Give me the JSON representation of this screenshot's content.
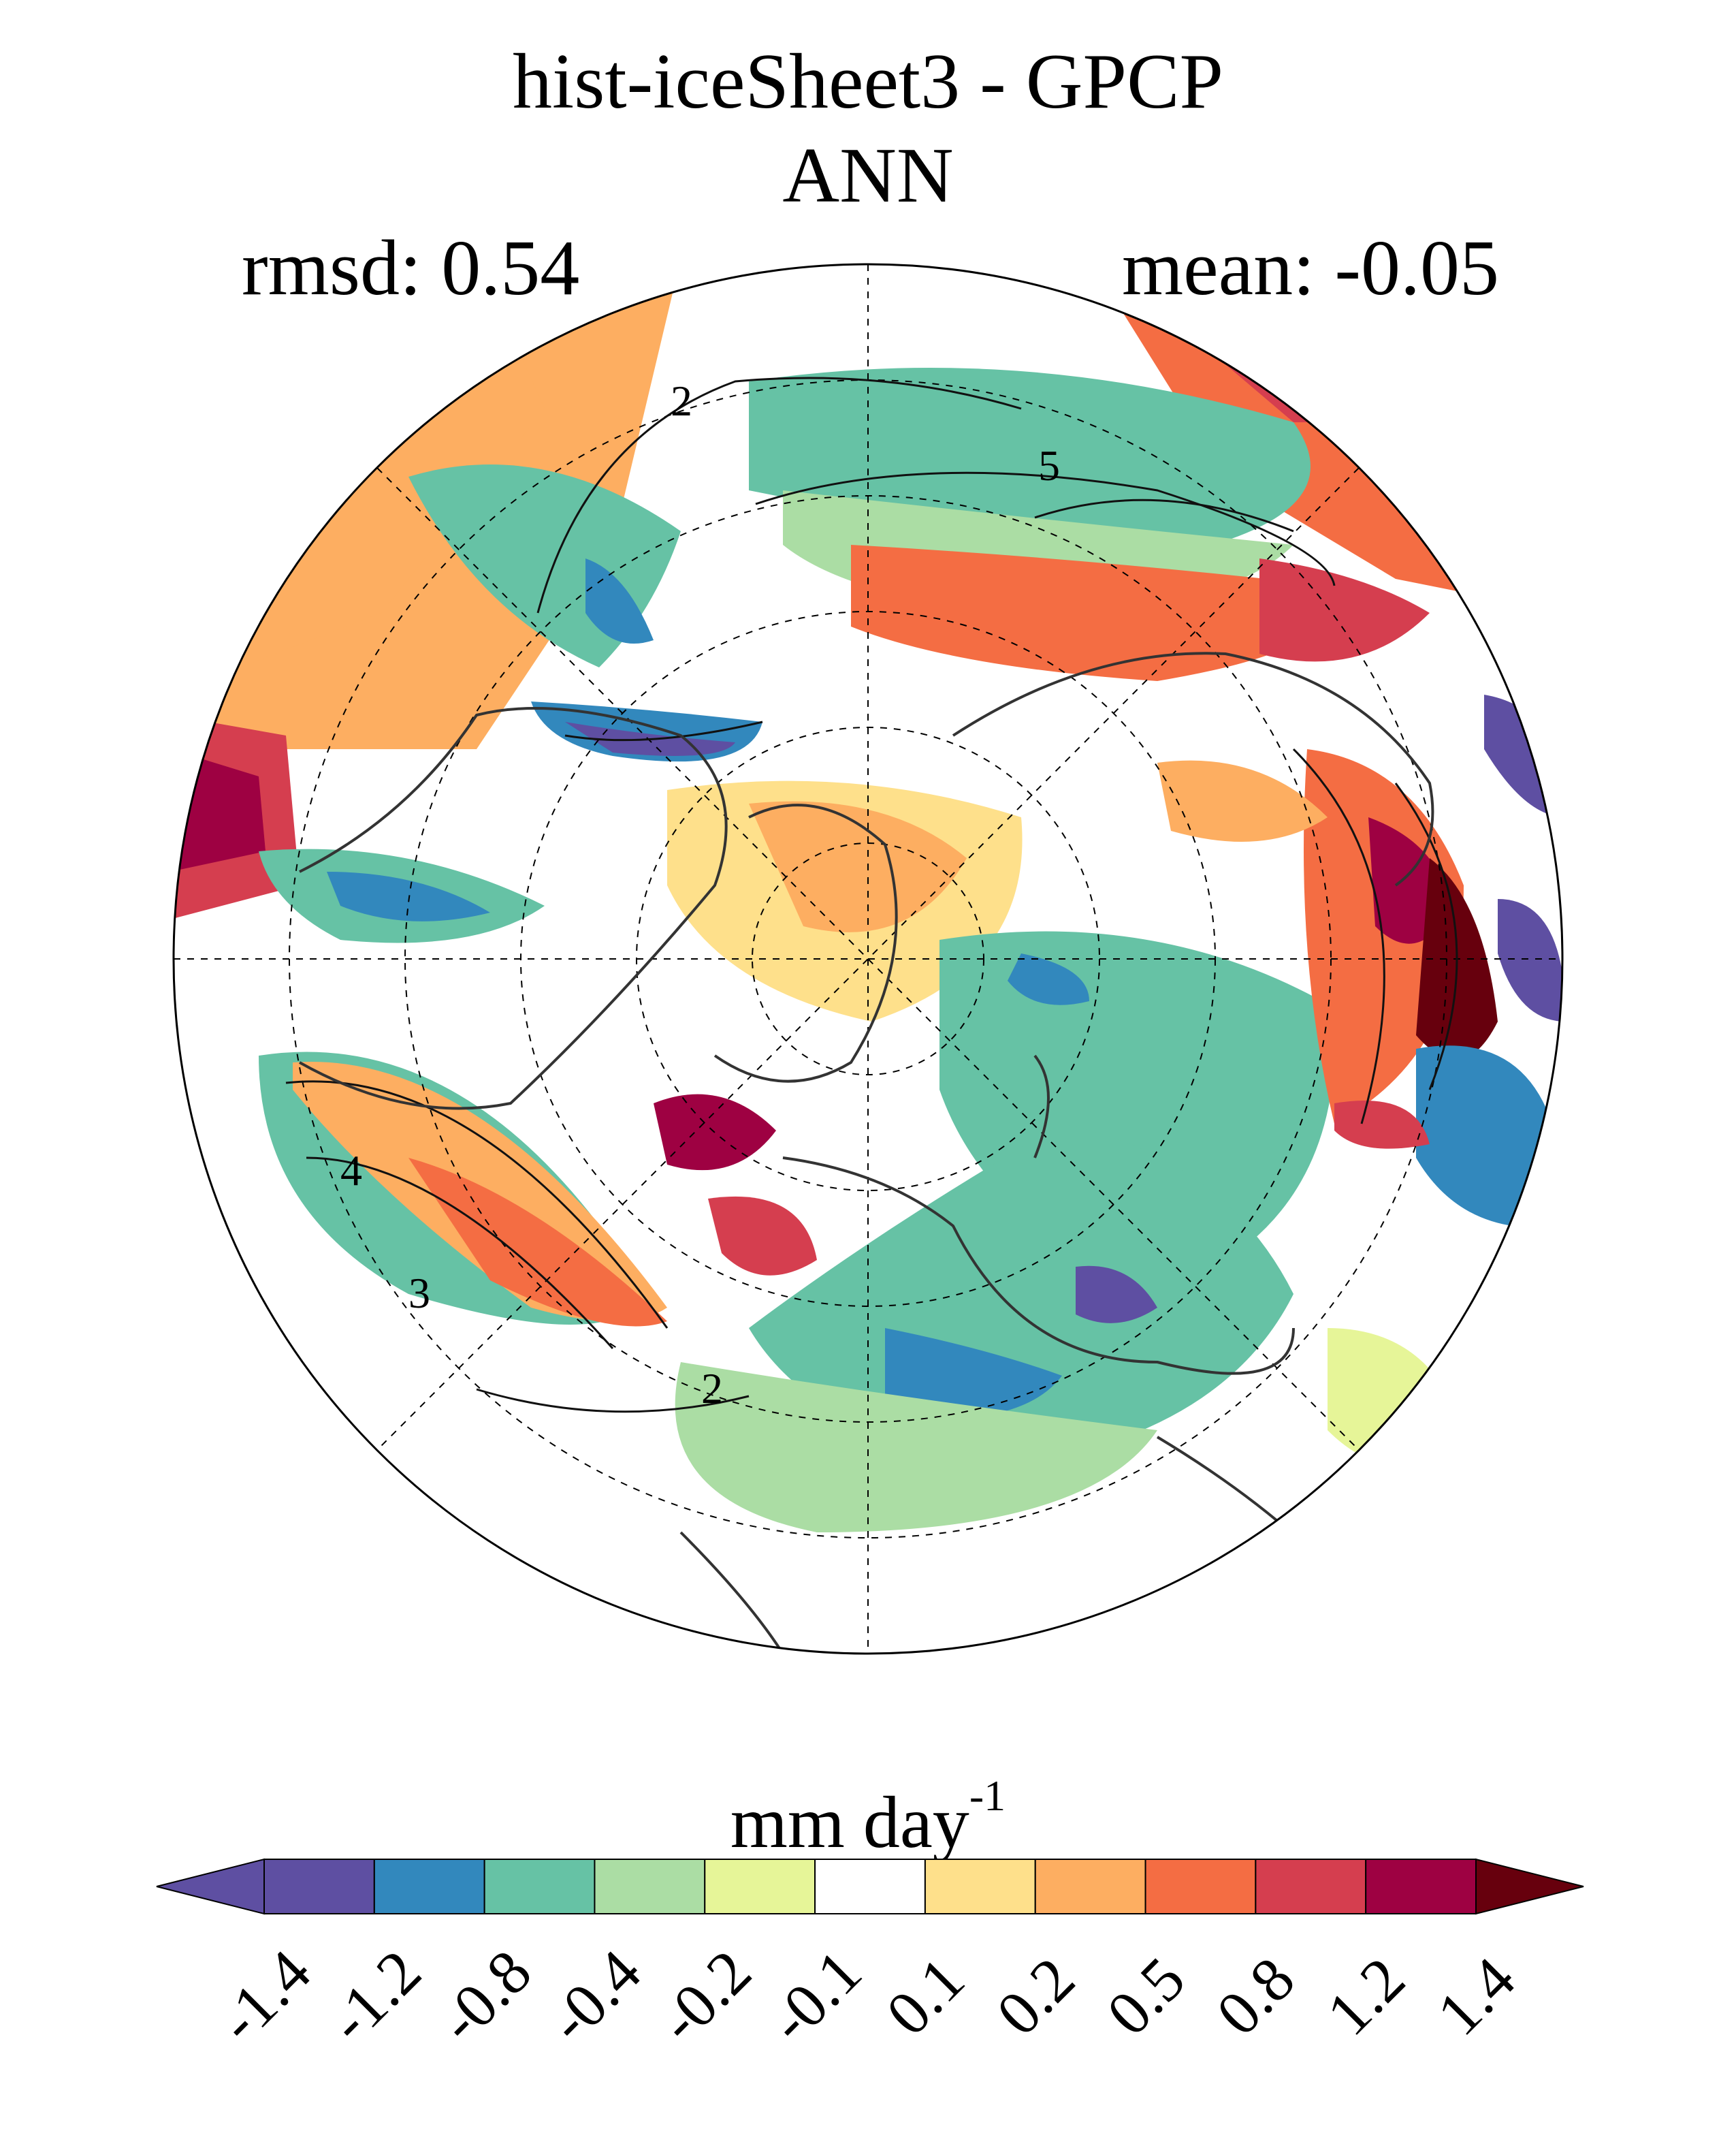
{
  "title": "hist-iceSheet3 - GPCP",
  "season": "ANN",
  "stats": {
    "rmsd": "rmsd: 0.54",
    "mean": "mean: -0.05"
  },
  "projection": "North polar stereographic",
  "colorbar": {
    "units_base": "mm day",
    "units_exp": "-1",
    "levels": [
      "-1.4",
      "-1.2",
      "-0.8",
      "-0.4",
      "-0.2",
      "-0.1",
      "0.1",
      "0.2",
      "0.5",
      "0.8",
      "1.2",
      "1.4"
    ],
    "colors": [
      "#5e4fa2",
      "#5e4fa2",
      "#3288bd",
      "#66c2a5",
      "#abdda4",
      "#e6f598",
      "#ffffff",
      "#fee08b",
      "#fdae61",
      "#f46d43",
      "#d53e4f",
      "#9e0142",
      "#67000d"
    ]
  },
  "contour_labels": [
    "2",
    "5",
    "4",
    "3",
    "2"
  ]
}
